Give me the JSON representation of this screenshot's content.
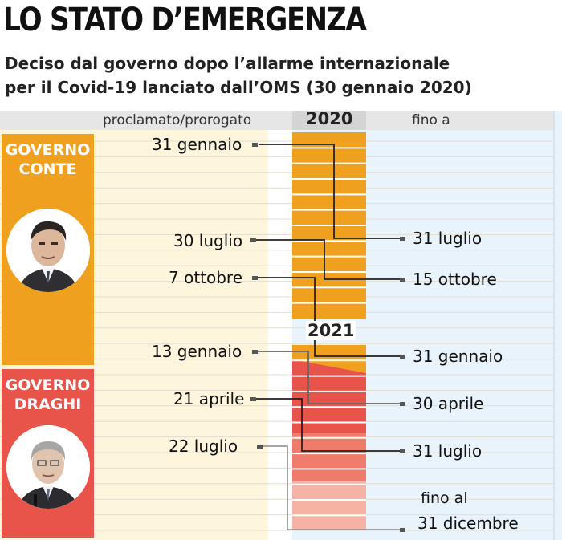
{
  "title": "LO STATO D’EMERGENZA",
  "subtitle_line1": "Deciso dal governo dopo l’allarme internazionale",
  "subtitle_line2": "per il Covid-19 lanciato dall’OMS (30 gennaio 2020)",
  "headers": {
    "proclaimed": "proclamato/prorogato",
    "year_2020": "2020",
    "until": "fino a",
    "year_2021": "2021"
  },
  "governments": [
    {
      "label": "GOVERNO\nCONTE",
      "color": "#f0a01f",
      "portrait": "conte-portrait-icon"
    },
    {
      "label": "GOVERNO\nDRAGHI",
      "color": "#e8534a",
      "portrait": "draghi-portrait-icon"
    }
  ],
  "periods": [
    {
      "proclaimed": "31 gennaio",
      "until": "31 luglio"
    },
    {
      "proclaimed": "30 luglio",
      "until": "15 ottobre"
    },
    {
      "proclaimed": "7 ottobre",
      "until": "31 gennaio"
    },
    {
      "proclaimed": "13 gennaio",
      "until": "30 aprile"
    },
    {
      "proclaimed": "21 aprile",
      "until": "31 luglio"
    },
    {
      "proclaimed": "22 luglio",
      "until": "31 dicembre"
    }
  ],
  "final_note": "fino al"
}
